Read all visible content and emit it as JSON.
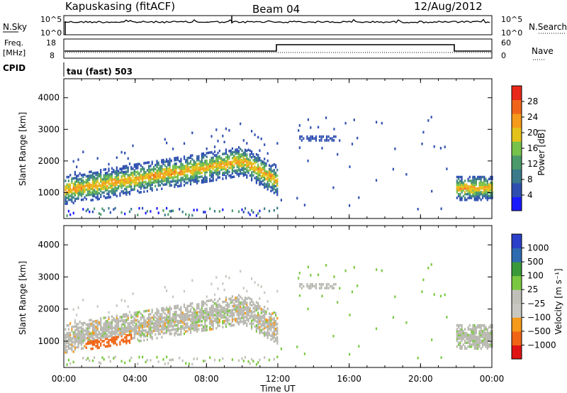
{
  "header": {
    "station": "Kapuskasing (fitACF)",
    "beam": "Beam 04",
    "date": "12/Aug/2012"
  },
  "colors": {
    "power": [
      "#1a1aff",
      "#2e4fb0",
      "#3a7a8a",
      "#4a9a6a",
      "#77c24a",
      "#e3c21a",
      "#f59a1a",
      "#f0641a",
      "#e8281a"
    ],
    "velocity": [
      "#e01414",
      "#f06414",
      "#f59a1a",
      "#c8c8c0",
      "#c0c0b8",
      "#7ac840",
      "#3a9a3a",
      "#2e6ab0",
      "#2a40c8"
    ],
    "ground_scatter": "#b8b8b0"
  },
  "noise_panel": {
    "left_label": "N.Sky",
    "left_ticks": [
      "10^5",
      "10^0"
    ],
    "right_label": "N.Search",
    "right_ticks": [
      "10^5",
      "10^0"
    ]
  },
  "freq_panel": {
    "left_label_1": "Freq.",
    "left_label_2": "[MHz]",
    "left_ticks": [
      "18",
      "8"
    ],
    "right_label": "Nave",
    "right_ticks": [
      "60",
      "0"
    ]
  },
  "cpid_panel": {
    "label": "CPID",
    "text": "tau (fast) 503"
  },
  "chart_data": [
    {
      "type": "heatmap",
      "name": "Power",
      "ylabel": "Slant Range [km]",
      "colorbar_label": "Power [dB]",
      "colorbar_ticks": [
        "4",
        "8",
        "12",
        "16",
        "20",
        "24",
        "28"
      ],
      "yticks": [
        "1000",
        "2000",
        "3000",
        "4000"
      ],
      "ylim": [
        180,
        4600
      ],
      "xlim": [
        0,
        24
      ]
    },
    {
      "type": "heatmap",
      "name": "Velocity",
      "ylabel": "Slant Range [km]",
      "colorbar_label": "Velocity [m s⁻¹]",
      "colorbar_ticks": [
        "-1000",
        "-500",
        "-100",
        "-25",
        "25",
        "100",
        "500",
        "1000"
      ],
      "yticks": [
        "1000",
        "2000",
        "3000",
        "4000"
      ],
      "ylim": [
        180,
        4600
      ],
      "xlim": [
        0,
        24
      ]
    }
  ],
  "xaxis": {
    "label": "Time UT",
    "ticks": [
      "00:00",
      "04:00",
      "08:00",
      "12:00",
      "16:00",
      "20:00",
      "00:00"
    ]
  }
}
